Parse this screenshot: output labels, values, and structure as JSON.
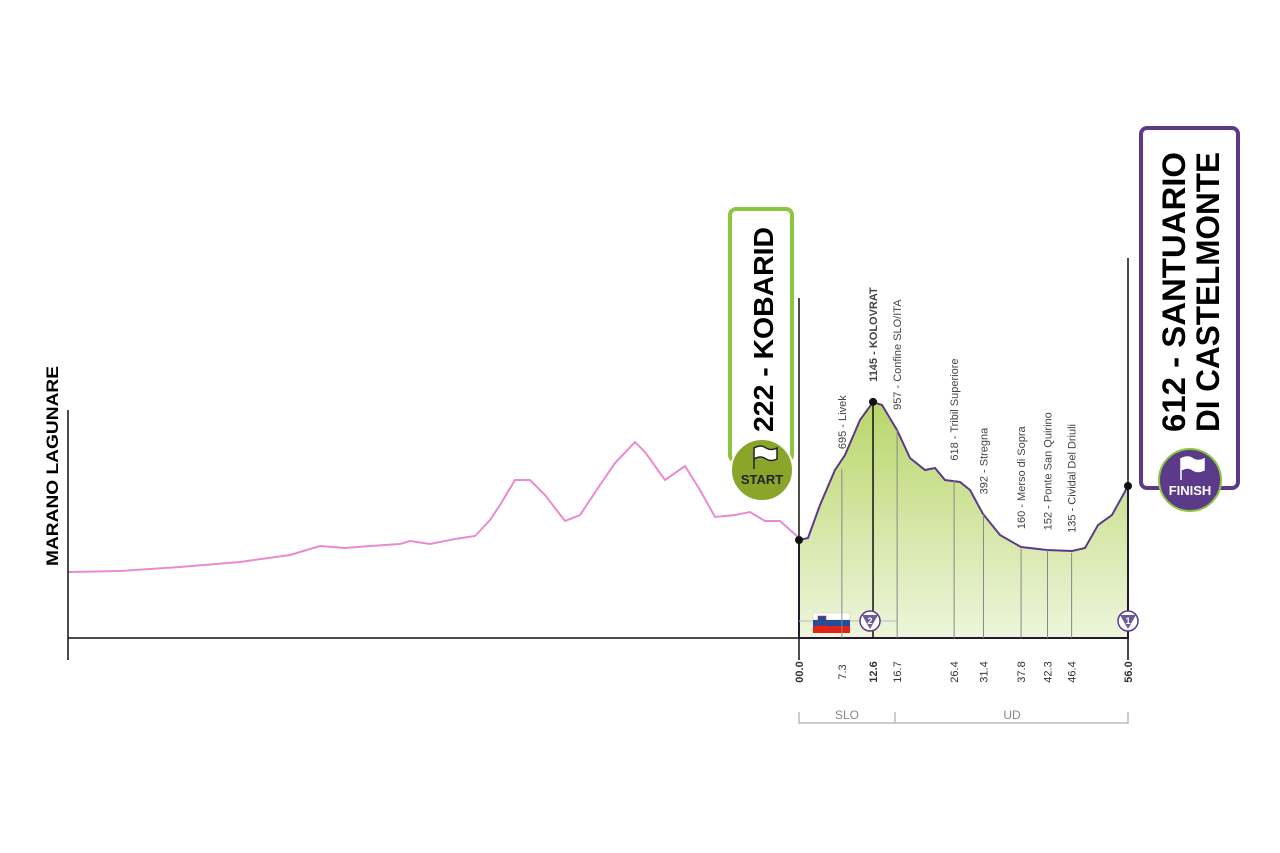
{
  "origin": {
    "label": "MARANO LAGUNARE"
  },
  "start": {
    "label": "222 - KOBARID",
    "badge": "START",
    "km": "00.0"
  },
  "waypoints": [
    {
      "label": "695 - Livek",
      "km": "7.3"
    },
    {
      "label": "1145 - KOLOVRAT",
      "km": "12.6",
      "highlight": true,
      "climb": "2"
    },
    {
      "label": "957 - Confine SLO/ITA",
      "km": "16.7"
    },
    {
      "label": "618 - Tribil Superiore",
      "km": "26.4"
    },
    {
      "label": "392 - Stregna",
      "km": "31.4"
    },
    {
      "label": "160 - Merso di Sopra",
      "km": "37.8"
    },
    {
      "label": "152 - Ponte San Quirino",
      "km": "42.3"
    },
    {
      "label": "135 - Cividal Del Driuli",
      "km": "46.4"
    }
  ],
  "finish": {
    "label_lines": [
      "612 - SANTUARIO",
      "DI CASTELMONTE"
    ],
    "badge": "FINISH",
    "km": "56.0",
    "climb": "1"
  },
  "regions": [
    {
      "label": "SLO"
    },
    {
      "label": "UD"
    }
  ]
}
